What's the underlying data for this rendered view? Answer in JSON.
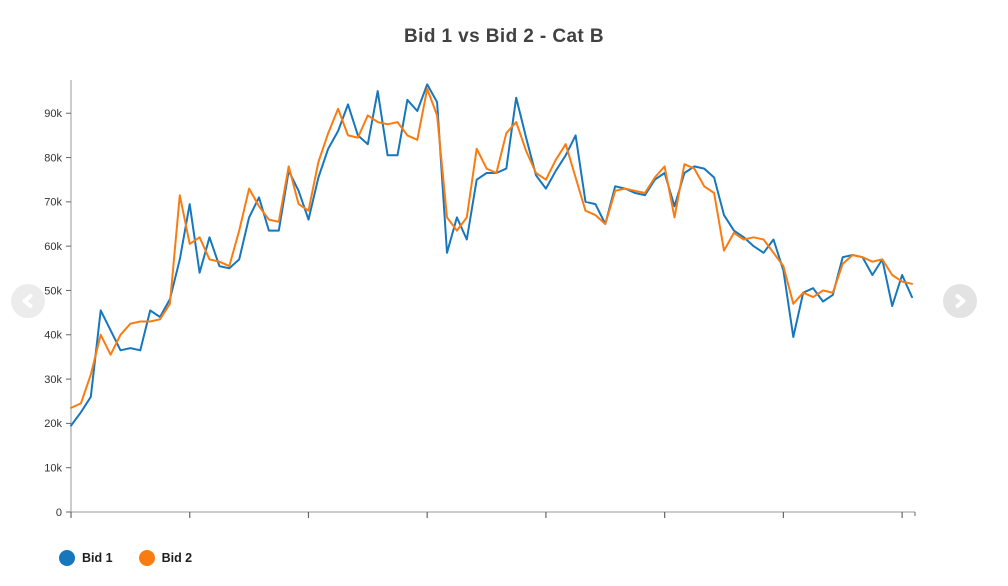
{
  "title": "Bid 1 vs Bid 2 - Cat B",
  "colors": {
    "bid1": "#1777bd",
    "bid2": "#fa7c11",
    "axis_line": "#9a9a9a",
    "tick_mark": "#666666",
    "tick_label": "#333333",
    "title_text": "#414042",
    "arrow_prev_bg": "#ececec",
    "arrow_next_bg": "#e3e3e3",
    "arrow_glyph": "#ffffff"
  },
  "legend": [
    {
      "label": "Bid 1",
      "color": "#1777bd"
    },
    {
      "label": "Bid 2",
      "color": "#fa7c11"
    }
  ],
  "chart_data": {
    "type": "line",
    "title": "Bid 1 vs Bid 2 - Cat B",
    "xlabel": "",
    "ylabel": "",
    "grid": false,
    "legend_position": "bottom-left",
    "ylim": [
      0,
      97500
    ],
    "y_ticks": [
      {
        "value": 0,
        "label": "0"
      },
      {
        "value": 10000,
        "label": "10k"
      },
      {
        "value": 20000,
        "label": "20k"
      },
      {
        "value": 30000,
        "label": "30k"
      },
      {
        "value": 40000,
        "label": "40k"
      },
      {
        "value": 50000,
        "label": "50k"
      },
      {
        "value": 60000,
        "label": "60k"
      },
      {
        "value": 70000,
        "label": "70k"
      },
      {
        "value": 80000,
        "label": "80k"
      },
      {
        "value": 90000,
        "label": "90k"
      }
    ],
    "x_tick_indices": [
      0,
      12,
      24,
      36,
      48,
      60,
      72,
      84
    ],
    "x_tick_labels": [],
    "series": [
      {
        "name": "Bid 1",
        "color": "#1777bd",
        "values": [
          19500,
          22500,
          26000,
          45500,
          41000,
          36500,
          37000,
          36500,
          45500,
          44000,
          48000,
          57000,
          69500,
          54000,
          62000,
          55500,
          55000,
          57000,
          66500,
          71000,
          63500,
          63500,
          77000,
          72500,
          66000,
          75500,
          82000,
          86000,
          92000,
          85000,
          83000,
          95000,
          80500,
          80500,
          93000,
          90500,
          96500,
          92500,
          58500,
          66500,
          61500,
          75000,
          76500,
          76500,
          77500,
          93500,
          84500,
          76000,
          73000,
          77000,
          80500,
          85000,
          70000,
          69500,
          65000,
          73500,
          73000,
          72000,
          71500,
          75000,
          76500,
          69000,
          76500,
          78000,
          77500,
          75500,
          67000,
          63500,
          62000,
          60000,
          58500,
          61500,
          54500,
          39500,
          49500,
          50500,
          47500,
          49000,
          57500,
          58000,
          57500,
          53500,
          57000,
          46500,
          53500,
          48500
        ]
      },
      {
        "name": "Bid 2",
        "color": "#fa7c11",
        "values": [
          23500,
          24500,
          31000,
          40000,
          35500,
          40000,
          42500,
          43000,
          43000,
          43500,
          47000,
          71500,
          60500,
          62000,
          57000,
          56500,
          55500,
          63500,
          73000,
          69000,
          66000,
          65500,
          78000,
          69500,
          68000,
          79000,
          85500,
          91000,
          85000,
          84500,
          89500,
          88000,
          87500,
          88000,
          85000,
          84000,
          95500,
          89500,
          66500,
          63500,
          66500,
          82000,
          77500,
          76500,
          85500,
          88000,
          81500,
          76500,
          75000,
          79500,
          83000,
          75500,
          68000,
          67000,
          65000,
          72500,
          73000,
          72500,
          72000,
          75500,
          78000,
          66500,
          78500,
          77500,
          73500,
          72000,
          59000,
          63000,
          61500,
          62000,
          61500,
          58500,
          55500,
          47000,
          49500,
          48500,
          50000,
          49500,
          56000,
          58000,
          57500,
          56500,
          57000,
          53500,
          52000,
          51500
        ]
      }
    ]
  }
}
